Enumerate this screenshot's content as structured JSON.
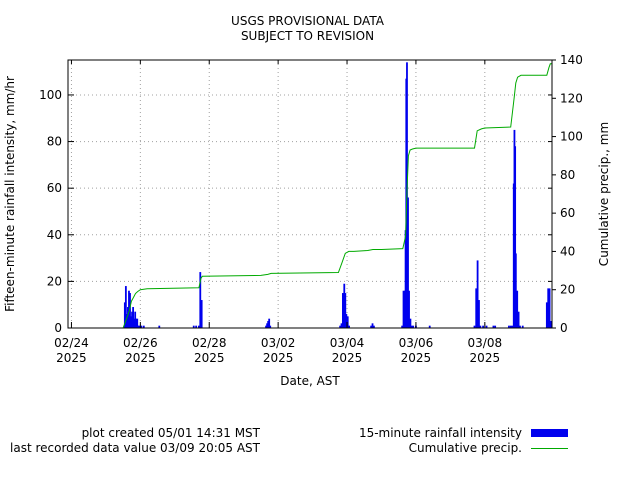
{
  "chart_data": {
    "type": "bar",
    "title": [
      "USGS PROVISIONAL DATA",
      "SUBJECT TO REVISION"
    ],
    "xlabel": "Date, AST",
    "ylabel": "Fifteen-minute rainfall intensity, mm/hr",
    "y2label": "Cumulative precip., mm",
    "xlim": [
      -0.1,
      13.95
    ],
    "ylim": [
      0,
      115
    ],
    "y2lim": [
      0,
      140
    ],
    "xticks": [
      {
        "pos": 0,
        "line1": "02/24",
        "line2": "2025"
      },
      {
        "pos": 2,
        "line1": "02/26",
        "line2": "2025"
      },
      {
        "pos": 4,
        "line1": "02/28",
        "line2": "2025"
      },
      {
        "pos": 6,
        "line1": "03/02",
        "line2": "2025"
      },
      {
        "pos": 8,
        "line1": "03/04",
        "line2": "2025"
      },
      {
        "pos": 10,
        "line1": "03/06",
        "line2": "2025"
      },
      {
        "pos": 12,
        "line1": "03/08",
        "line2": "2025"
      }
    ],
    "yticks": [
      0,
      20,
      40,
      60,
      80,
      100
    ],
    "y2ticks": [
      0,
      20,
      40,
      60,
      80,
      100,
      120,
      140
    ],
    "grid": true,
    "legend_position": "bottom-right",
    "series": [
      {
        "name": "15-minute rainfall intensity",
        "color": "#0000ee",
        "kind": "bar",
        "x": [
          1.55,
          1.58,
          1.61,
          1.64,
          1.67,
          1.7,
          1.73,
          1.76,
          1.79,
          1.82,
          1.85,
          1.88,
          1.91,
          1.94,
          1.97,
          2.0,
          2.03,
          2.1,
          2.55,
          3.55,
          3.62,
          3.7,
          3.74,
          3.78,
          5.65,
          5.68,
          5.71,
          5.74,
          5.77,
          7.8,
          7.84,
          7.88,
          7.92,
          7.95,
          7.98,
          8.02,
          8.06,
          8.7,
          8.74,
          8.78,
          9.6,
          9.64,
          9.68,
          9.7,
          9.72,
          9.74,
          9.77,
          9.8,
          9.84,
          9.88,
          9.92,
          10.0,
          10.4,
          11.7,
          11.75,
          11.79,
          11.83,
          11.87,
          11.95,
          12.05,
          12.25,
          12.3,
          12.7,
          12.75,
          12.8,
          12.84,
          12.86,
          12.88,
          12.9,
          12.94,
          12.98,
          13.02,
          13.1,
          13.8,
          13.84,
          13.88,
          13.92
        ],
        "values": [
          11,
          18,
          6,
          9,
          16,
          15,
          5,
          7,
          9,
          4,
          7,
          4,
          4,
          1,
          1,
          1,
          1,
          1,
          1,
          1,
          1,
          1,
          24,
          12,
          1,
          2,
          3,
          4,
          1,
          1,
          2,
          15,
          19,
          15,
          6,
          5,
          1,
          1,
          2,
          1,
          1,
          16,
          16,
          42,
          107,
          114,
          56,
          16,
          4,
          1,
          1,
          1,
          1,
          1,
          17,
          29,
          12,
          1,
          1,
          1,
          1,
          1,
          1,
          1,
          1,
          62,
          85,
          78,
          32,
          16,
          7,
          1,
          1,
          11,
          17,
          17,
          3
        ]
      },
      {
        "name": "Cumulative precip.",
        "color": "#00aa00",
        "kind": "line",
        "x": [
          1.5,
          1.56,
          1.62,
          1.68,
          1.74,
          1.8,
          1.86,
          1.92,
          2.0,
          2.2,
          3.7,
          3.76,
          3.8,
          5.5,
          5.7,
          5.8,
          7.75,
          7.85,
          7.95,
          8.05,
          8.1,
          8.2,
          8.6,
          8.75,
          9.0,
          9.62,
          9.7,
          9.74,
          9.78,
          9.83,
          9.9,
          10.0,
          11.7,
          11.78,
          11.9,
          12.0,
          12.75,
          12.85,
          12.9,
          12.95,
          13.05,
          13.8,
          13.86,
          13.9,
          13.95
        ],
        "values": [
          0,
          3,
          6,
          9,
          14,
          16,
          18,
          19,
          20,
          20.5,
          21,
          26,
          27,
          27.5,
          28,
          28.5,
          29,
          34,
          39,
          40,
          40,
          40,
          40.5,
          41,
          41,
          41.5,
          48,
          72,
          90,
          93,
          93.5,
          94,
          94,
          103,
          104,
          104.5,
          105,
          120,
          128,
          131,
          132,
          132,
          136,
          138,
          138
        ]
      }
    ]
  },
  "header": {
    "line1": "USGS PROVISIONAL DATA",
    "line2": "SUBJECT TO REVISION"
  },
  "footer": {
    "plot_created": "plot created 05/01 14:31 MST",
    "last_recorded": "last recorded data value 03/09 20:05 AST"
  },
  "legend": {
    "items": [
      {
        "label": "15-minute rainfall intensity",
        "color": "#0000ee"
      },
      {
        "label": "Cumulative precip.",
        "color": "#00aa00"
      }
    ]
  }
}
